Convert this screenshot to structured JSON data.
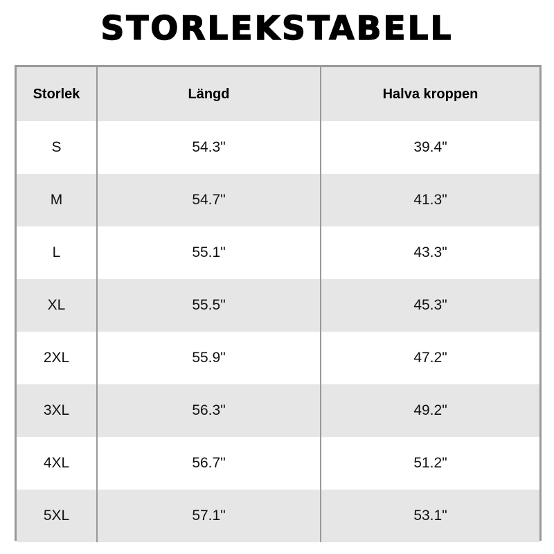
{
  "title": "STORLEKSTABELL",
  "table": {
    "headers": [
      "Storlek",
      "Längd",
      "Halva kroppen"
    ],
    "rows": [
      [
        "S",
        "54.3\"",
        "39.4\""
      ],
      [
        "M",
        "54.7\"",
        "41.3\""
      ],
      [
        "L",
        "55.1\"",
        "43.3\""
      ],
      [
        "XL",
        "55.5\"",
        "45.3\""
      ],
      [
        "2XL",
        "55.9\"",
        "47.2\""
      ],
      [
        "3XL",
        "56.3\"",
        "49.2\""
      ],
      [
        "4XL",
        "56.7\"",
        "51.2\""
      ],
      [
        "5XL",
        "57.1\"",
        "53.1\""
      ]
    ]
  },
  "colors": {
    "border": "#999999",
    "stripe": "#e6e6e6",
    "background": "#ffffff"
  }
}
